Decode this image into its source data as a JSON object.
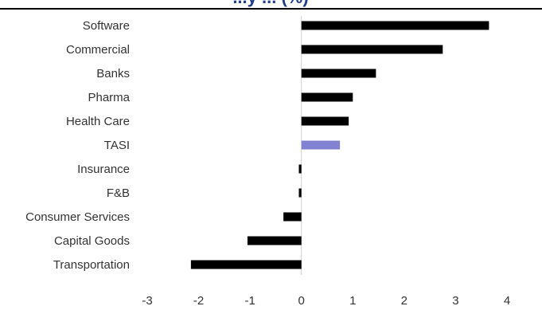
{
  "chart_data": {
    "type": "bar",
    "orientation": "horizontal",
    "title_fragment": "...y ... (%)",
    "categories": [
      "Software",
      "Commercial",
      "Banks",
      "Pharma",
      "Health Care",
      "TASI",
      "Insurance",
      "F&B",
      "Consumer Services",
      "Capital Goods",
      "Transportation"
    ],
    "values": [
      3.65,
      2.75,
      1.45,
      1.0,
      0.92,
      0.75,
      -0.05,
      -0.05,
      -0.35,
      -1.05,
      -2.15
    ],
    "highlight_category": "TASI",
    "xlim": [
      -3,
      4
    ],
    "xticks": [
      "-3",
      "-2",
      "-1",
      "0",
      "1",
      "2",
      "3",
      "4"
    ],
    "grid": false,
    "colors": {
      "bar": "#000000",
      "highlight": "#8282d2",
      "title": "#1f3d8a",
      "text": "#333333",
      "axis": "#d0d0d0",
      "rule": "#000000"
    }
  }
}
